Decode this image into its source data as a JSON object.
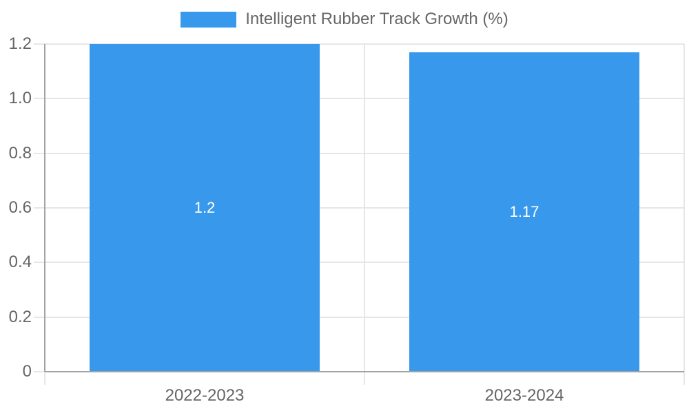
{
  "legend": {
    "label": "Intelligent Rubber Track Growth (%)"
  },
  "colors": {
    "bar": "#3899ec",
    "grid": "#e6e6e6",
    "axis": "#a3a3a3",
    "tick_text": "#666666",
    "data_label": "#ffffff",
    "background": "#ffffff"
  },
  "chart_data": {
    "type": "bar",
    "categories": [
      "2022-2023",
      "2023-2024"
    ],
    "series": [
      {
        "name": "Intelligent Rubber Track Growth (%)",
        "values": [
          1.2,
          1.17
        ]
      }
    ],
    "data_labels": [
      "1.2",
      "1.17"
    ],
    "title": "",
    "xlabel": "",
    "ylabel": "",
    "ylim": [
      0,
      1.2
    ],
    "ytick_step": 0.2,
    "ytick_labels": [
      "0",
      "0.2",
      "0.4",
      "0.6",
      "0.8",
      "1.0",
      "1.2"
    ],
    "grid": true,
    "legend_position": "top"
  }
}
